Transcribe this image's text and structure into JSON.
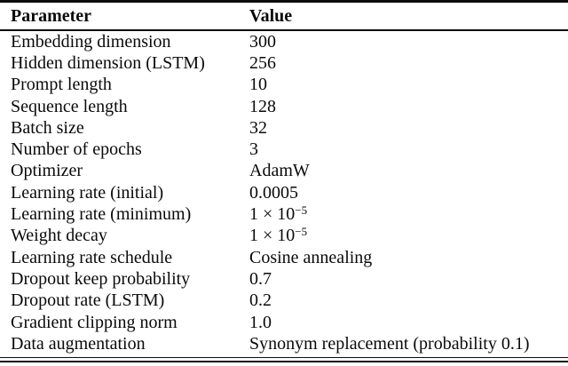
{
  "table": {
    "columns": [
      {
        "label": "Parameter"
      },
      {
        "label": "Value"
      }
    ],
    "rows": [
      {
        "parameter": "Embedding dimension",
        "value": "300"
      },
      {
        "parameter": "Hidden dimension (LSTM)",
        "value": "256"
      },
      {
        "parameter": "Prompt length",
        "value": "10"
      },
      {
        "parameter": "Sequence length",
        "value": "128"
      },
      {
        "parameter": "Batch size",
        "value": "32"
      },
      {
        "parameter": "Number of epochs",
        "value": "3"
      },
      {
        "parameter": "Optimizer",
        "value": "AdamW"
      },
      {
        "parameter": "Learning rate (initial)",
        "value": "0.0005"
      },
      {
        "parameter": "Learning rate (minimum)",
        "value": "1 × 10",
        "value_sup": "−5"
      },
      {
        "parameter": "Weight decay",
        "value": "1 × 10",
        "value_sup": "−5"
      },
      {
        "parameter": "Learning rate schedule",
        "value": "Cosine annealing"
      },
      {
        "parameter": "Dropout keep probability",
        "value": "0.7"
      },
      {
        "parameter": "Dropout rate (LSTM)",
        "value": "0.2"
      },
      {
        "parameter": "Gradient clipping norm",
        "value": "1.0"
      },
      {
        "parameter": "Data augmentation",
        "value": "Synonym replacement (probability 0.1)"
      }
    ],
    "colors": {
      "rule": "#0d0d0d",
      "text": "#0a0a0a",
      "background": "#ffffff"
    }
  }
}
